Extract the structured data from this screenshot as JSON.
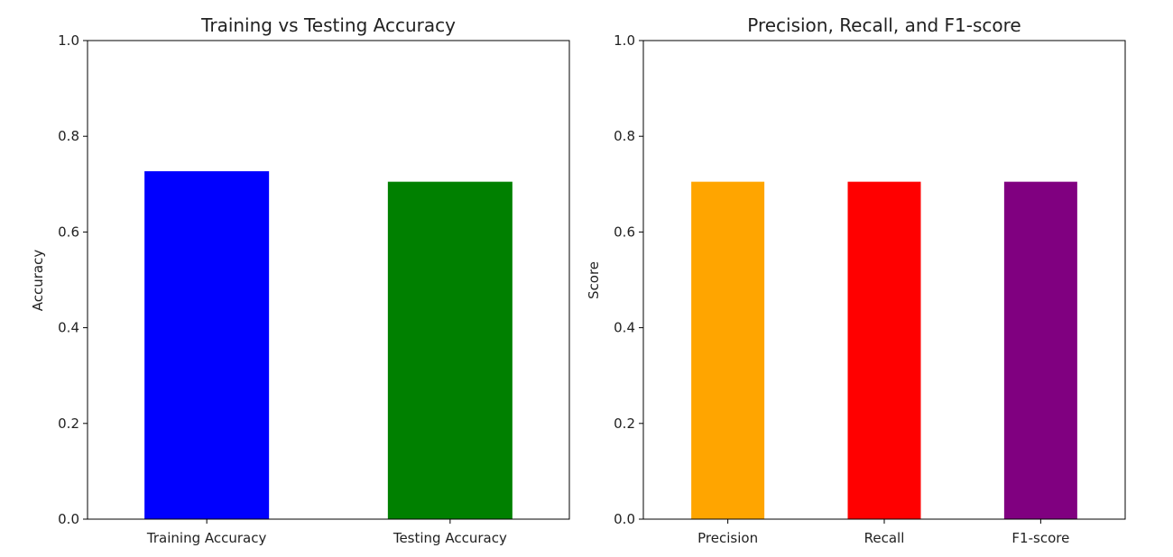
{
  "chart_data": [
    {
      "type": "bar",
      "title": "Training vs Testing Accuracy",
      "xlabel": "",
      "ylabel": "Accuracy",
      "ylim": [
        0,
        1.0
      ],
      "yticks": [
        "0.0",
        "0.2",
        "0.4",
        "0.6",
        "0.8",
        "1.0"
      ],
      "categories": [
        "Training Accuracy",
        "Testing Accuracy"
      ],
      "values": [
        0.727,
        0.705
      ],
      "colors": [
        "#0000ff",
        "#008000"
      ],
      "grid": false
    },
    {
      "type": "bar",
      "title": "Precision, Recall, and F1-score",
      "xlabel": "",
      "ylabel": "Score",
      "ylim": [
        0,
        1.0
      ],
      "yticks": [
        "0.0",
        "0.2",
        "0.4",
        "0.6",
        "0.8",
        "1.0"
      ],
      "categories": [
        "Precision",
        "Recall",
        "F1-score"
      ],
      "values": [
        0.705,
        0.705,
        0.705
      ],
      "colors": [
        "#ffa500",
        "#ff0000",
        "#800080"
      ],
      "grid": false
    }
  ]
}
